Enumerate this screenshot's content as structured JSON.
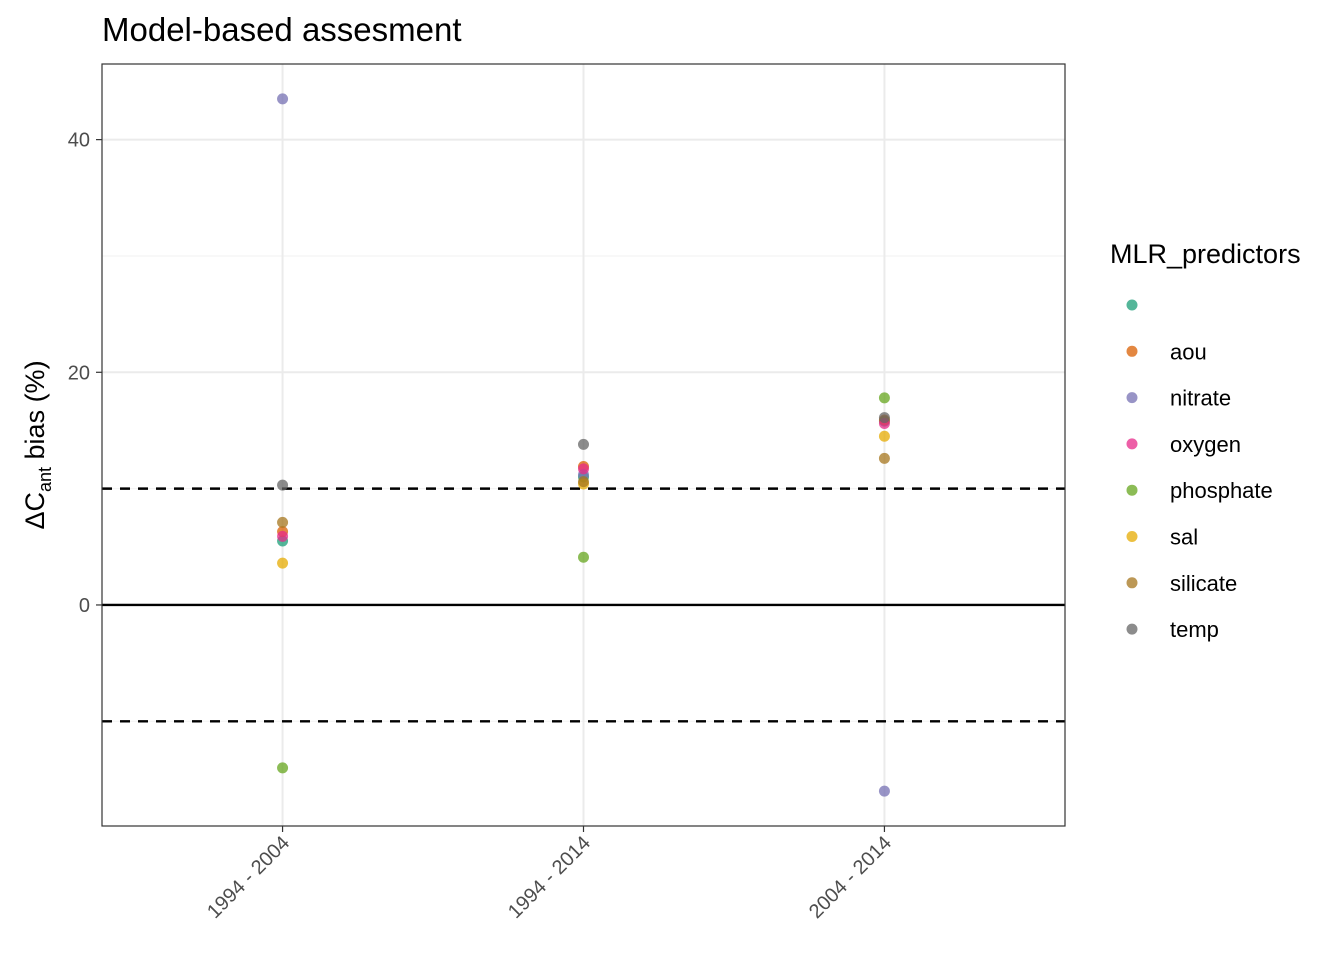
{
  "chart_data": {
    "type": "scatter",
    "title": "Model-based assesment",
    "ylabel": {
      "prefix": "ΔC",
      "subscript": "ant",
      "suffix": " bias (%)"
    },
    "xlabel": "",
    "categories": [
      "1994 - 2004",
      "1994 - 2014",
      "2004 - 2014"
    ],
    "ylim": [
      -19,
      46.5
    ],
    "yticks": [
      0,
      20,
      40
    ],
    "grid": true,
    "reference_lines": [
      {
        "y": 0,
        "style": "solid"
      },
      {
        "y": 10,
        "style": "dashed"
      },
      {
        "y": -10,
        "style": "dashed"
      }
    ],
    "legend": {
      "title": "MLR_predictors",
      "position": "right"
    },
    "series": [
      {
        "name": "",
        "color": "#1b9e77",
        "values": [
          5.5,
          11.0,
          15.8
        ]
      },
      {
        "name": "aou",
        "color": "#d95f02",
        "values": [
          6.3,
          11.9,
          15.9
        ]
      },
      {
        "name": "nitrate",
        "color": "#7570b3",
        "values": [
          43.5,
          11.2,
          -16.0
        ]
      },
      {
        "name": "oxygen",
        "color": "#e7298a",
        "values": [
          5.9,
          11.7,
          15.6
        ]
      },
      {
        "name": "phosphate",
        "color": "#66a61e",
        "values": [
          -14.0,
          4.1,
          17.8
        ]
      },
      {
        "name": "sal",
        "color": "#e6ab02",
        "values": [
          3.6,
          10.4,
          14.5
        ]
      },
      {
        "name": "silicate",
        "color": "#a6761d",
        "values": [
          7.1,
          10.6,
          12.6
        ]
      },
      {
        "name": "temp",
        "color": "#666666",
        "values": [
          10.3,
          13.8,
          16.1
        ]
      }
    ]
  }
}
